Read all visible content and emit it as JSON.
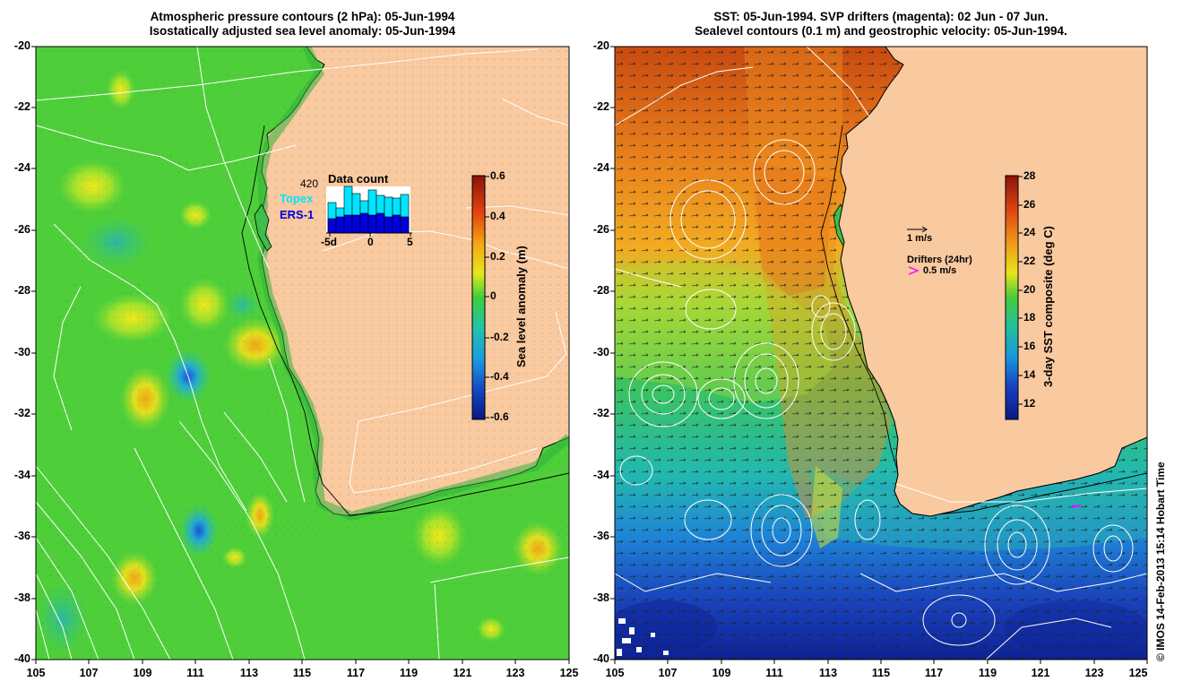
{
  "left_panel": {
    "title_line1": "Atmospheric pressure contours (2 hPa): 05-Jun-1994",
    "title_line2": "Isostatically adjusted sea level anomaly: 05-Jun-1994",
    "colorbar_label": "Sea level anomaly (m)",
    "colorbar_ticks": [
      "0.6",
      "0.4",
      "0.2",
      "0",
      "-0.2",
      "-0.4",
      "-0.6"
    ],
    "inset": {
      "count": "420",
      "title": "Data count",
      "topex_label": "Topex",
      "ers_label": "ERS-1",
      "xticks": [
        "-5d",
        "0",
        "5"
      ],
      "topex_color": "#00e5ff",
      "ers_color": "#0000dd"
    }
  },
  "right_panel": {
    "title_line1": "SST: 05-Jun-1994. SVP drifters (magenta): 02 Jun - 07 Jun.",
    "title_line2": "Sealevel contours (0.1 m) and geostrophic velocity: 05-Jun-1994.",
    "colorbar_label": "3-day SST composite (deg C)",
    "colorbar_ticks": [
      "28",
      "26",
      "24",
      "22",
      "20",
      "18",
      "16",
      "14",
      "12"
    ],
    "velocity_scale": "1 m/s",
    "drifters_label": "Drifters (24hr)",
    "drifters_speed": "0.5 m/s",
    "drifter_color": "#ff00ff"
  },
  "axes": {
    "yticks": [
      "-20",
      "-22",
      "-24",
      "-26",
      "-28",
      "-30",
      "-32",
      "-34",
      "-36",
      "-38",
      "-40"
    ],
    "xticks": [
      "105",
      "107",
      "109",
      "111",
      "113",
      "115",
      "117",
      "119",
      "121",
      "123",
      "125"
    ]
  },
  "credit": "© IMOS 14-Feb-2013 15:14 Hobart Time",
  "colors": {
    "land": "#f9c99f",
    "ocean_green": "#4ecf3a",
    "sst_warm": "#e8761c",
    "sst_cold": "#1234b8"
  }
}
